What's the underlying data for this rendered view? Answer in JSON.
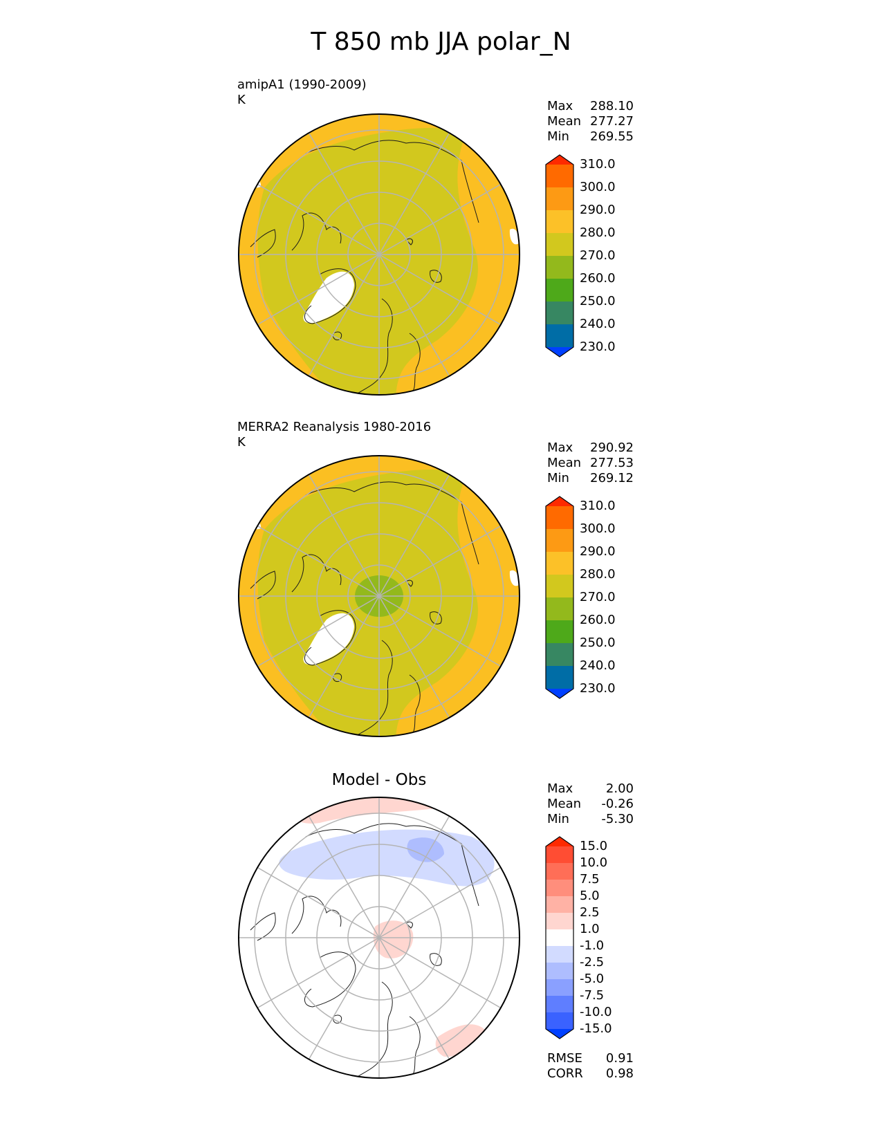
{
  "title": "T 850 mb JJA polar_N",
  "colors": {
    "ocean": "#ffffff",
    "missing": "#ffffff",
    "grid": "#b4b4b4",
    "coast": "#1a1a1a",
    "warm1": "#d2c81e",
    "warm2": "#fbbf22",
    "warm3": "#93b91c"
  },
  "panels": [
    {
      "id": "model",
      "label": "amipA1 (1990-2009)",
      "units": "K",
      "stats": [
        {
          "name": "Max",
          "value": "288.10"
        },
        {
          "name": "Mean",
          "value": "277.27"
        },
        {
          "name": "Min",
          "value": "269.55"
        }
      ],
      "colorbar": {
        "ticks": [
          "310.0",
          "300.0",
          "290.0",
          "280.0",
          "270.0",
          "260.0",
          "250.0",
          "240.0",
          "230.0"
        ],
        "colors": [
          "#fe2a00",
          "#ff6a00",
          "#fd9a14",
          "#fcc128",
          "#d2c81e",
          "#93b91c",
          "#4ea91a",
          "#378762",
          "#006da6",
          "#0040ff"
        ]
      }
    },
    {
      "id": "obs",
      "label": "MERRA2 Reanalysis 1980-2016",
      "units": "K",
      "stats": [
        {
          "name": "Max",
          "value": "290.92"
        },
        {
          "name": "Mean",
          "value": "277.53"
        },
        {
          "name": "Min",
          "value": "269.12"
        }
      ],
      "colorbar": {
        "ticks": [
          "310.0",
          "300.0",
          "290.0",
          "280.0",
          "270.0",
          "260.0",
          "250.0",
          "240.0",
          "230.0"
        ],
        "colors": [
          "#fe2a00",
          "#ff6a00",
          "#fd9a14",
          "#fcc128",
          "#d2c81e",
          "#93b91c",
          "#4ea91a",
          "#378762",
          "#006da6",
          "#0040ff"
        ]
      }
    },
    {
      "id": "diff",
      "title": "Model - Obs",
      "stats": [
        {
          "name": "Max",
          "value": "2.00"
        },
        {
          "name": "Mean",
          "value": "-0.26"
        },
        {
          "name": "Min",
          "value": "-5.30"
        }
      ],
      "colorbar": {
        "ticks": [
          "15.0",
          "10.0",
          "7.5",
          "5.0",
          "2.5",
          "1.0",
          "-1.0",
          "-2.5",
          "-5.0",
          "-7.5",
          "-10.0",
          "-15.0"
        ],
        "colors": [
          "#fe2a00",
          "#ff4d33",
          "#ff6e57",
          "#ff8e7c",
          "#ffb2a5",
          "#ffd6d0",
          "#ffffff",
          "#d2dbff",
          "#aebdfe",
          "#8aa0ff",
          "#5f7eff",
          "#3a62ff",
          "#0040ff"
        ]
      },
      "metrics": [
        {
          "name": "RMSE",
          "value": "0.91"
        },
        {
          "name": "CORR",
          "value": "0.98"
        }
      ]
    }
  ]
}
